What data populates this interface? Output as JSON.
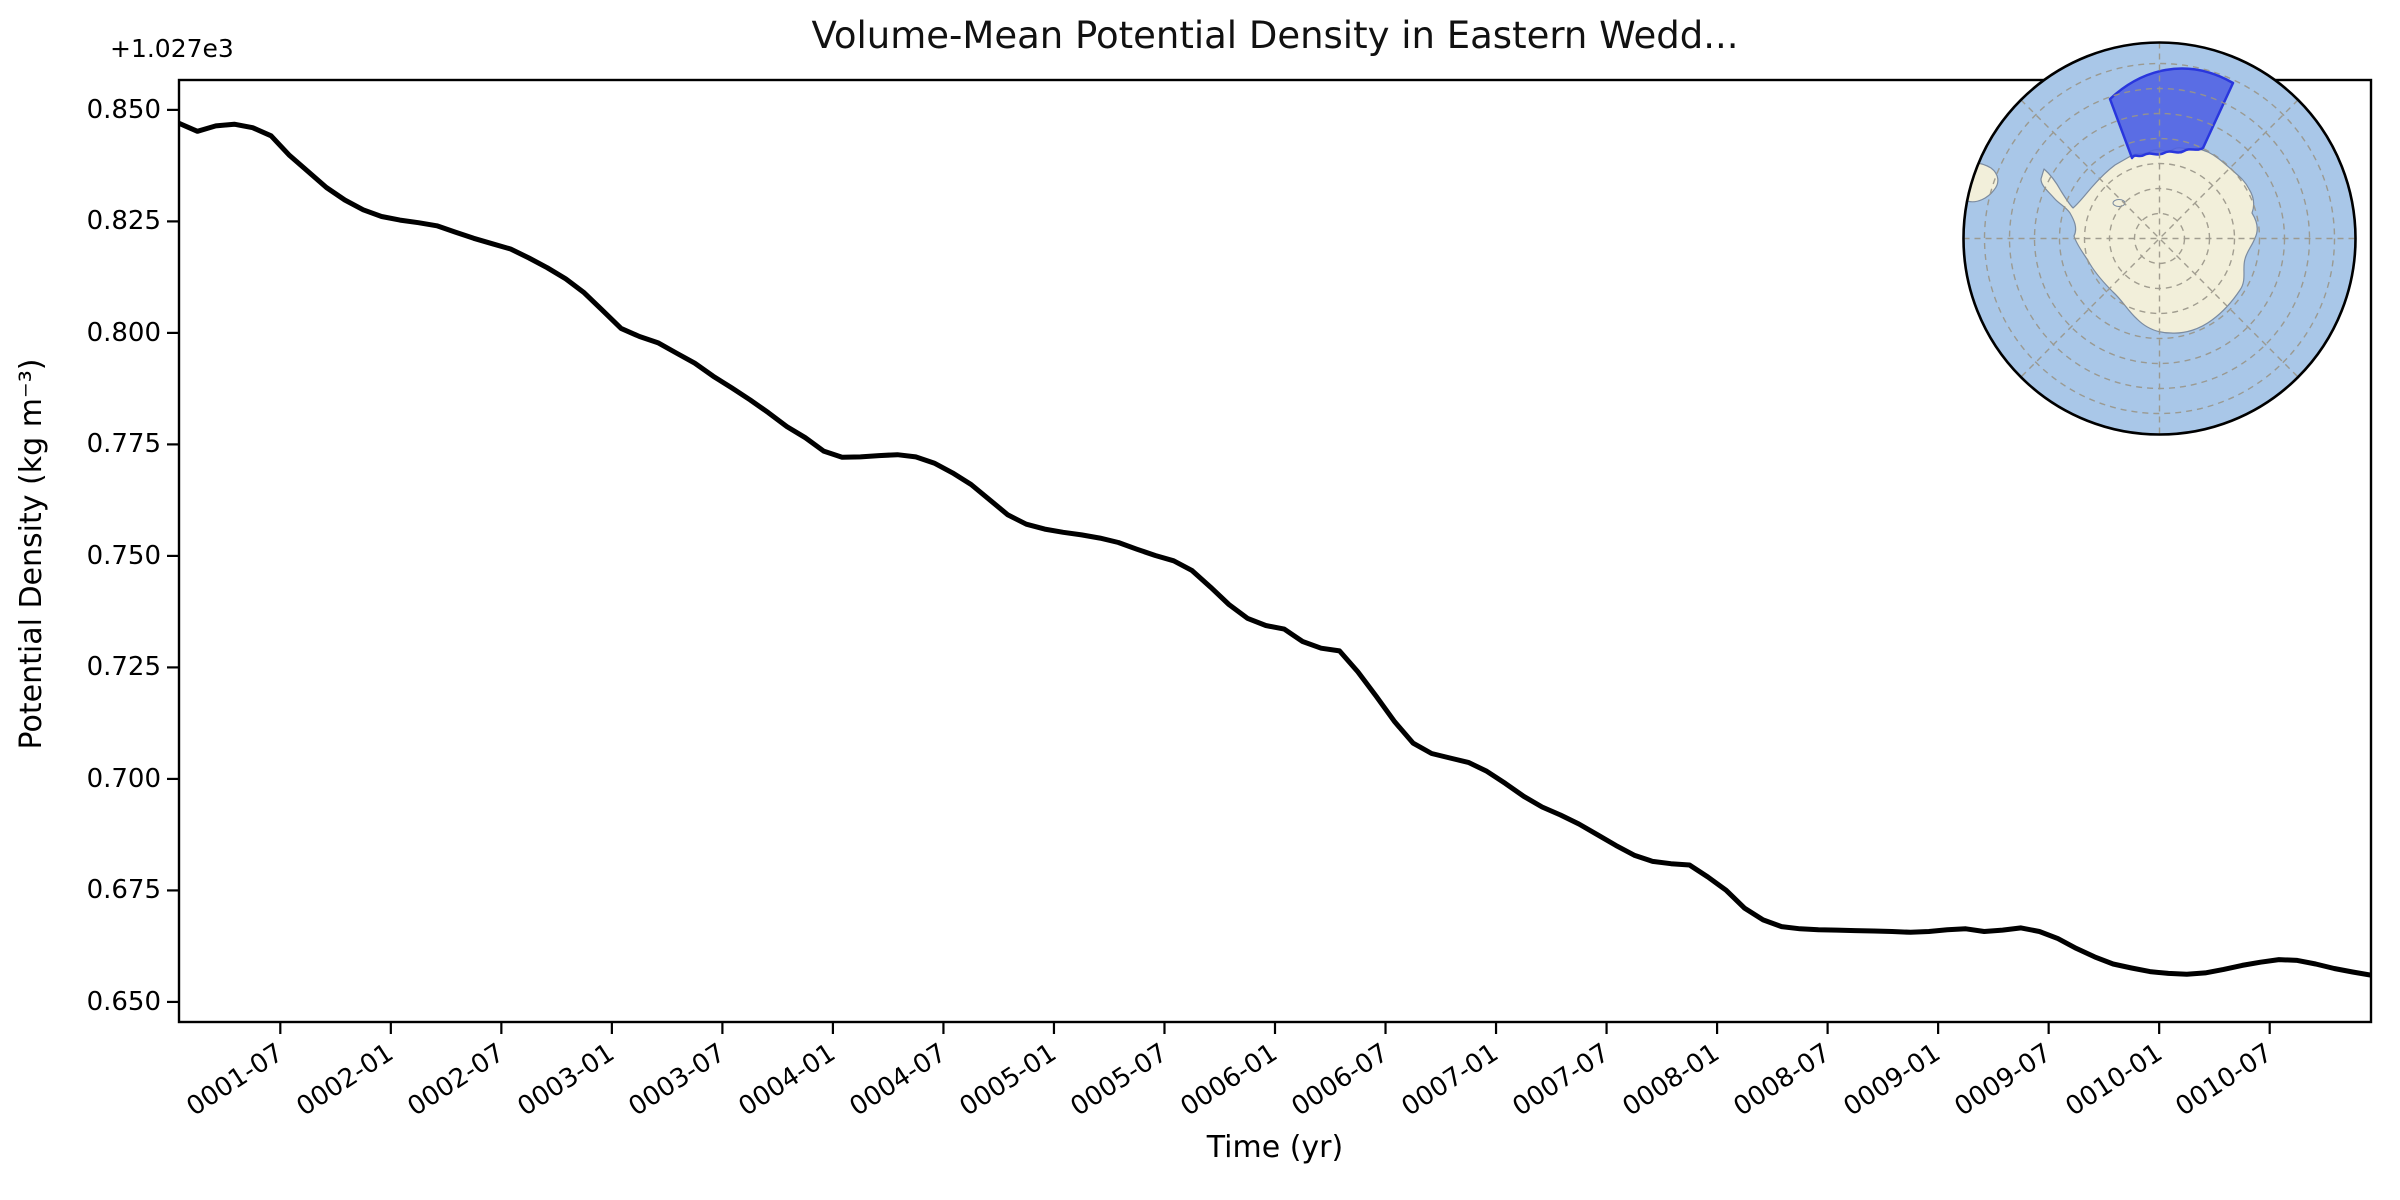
{
  "figure": {
    "title": "Volume-Mean Potential Density in Eastern Wedd...",
    "y_axis_offset_label": "+1.027e3"
  },
  "chart_data": {
    "type": "line",
    "title": "Volume-Mean Potential Density in Eastern Wedd...",
    "xlabel": "Time (yr)",
    "ylabel": "Potential Density (kg m⁻³)",
    "units": "kg m⁻³",
    "grid": false,
    "legend": false,
    "y_offset": 1027,
    "y_offset_label": "+1.027e3",
    "ylim": [
      0.6455,
      0.8567
    ],
    "xlim_months": [
      0.5,
      119.5
    ],
    "y_ticks": [
      "0.650",
      "0.675",
      "0.700",
      "0.725",
      "0.750",
      "0.775",
      "0.800",
      "0.825",
      "0.850"
    ],
    "x_tick_months": [
      6,
      12,
      18,
      24,
      30,
      36,
      42,
      48,
      54,
      60,
      66,
      72,
      78,
      84,
      90,
      96,
      102,
      108,
      114
    ],
    "x_tick_labels": [
      "0001-07",
      "0002-01",
      "0002-07",
      "0003-01",
      "0003-07",
      "0004-01",
      "0004-07",
      "0005-01",
      "0005-07",
      "0006-01",
      "0006-07",
      "0007-01",
      "0007-07",
      "0008-01",
      "0008-07",
      "0009-01",
      "0009-07",
      "0010-01",
      "0010-07"
    ],
    "series": [
      {
        "name": "volume-mean potential density",
        "color": "#000000",
        "line_width": 5,
        "x_start_label": "0001-01",
        "x_end_label": "0010-12",
        "x_months_start": 0.5,
        "x_months_step": 1,
        "values": [
          0.847,
          0.8452,
          0.8464,
          0.8468,
          0.846,
          0.8442,
          0.8398,
          0.8362,
          0.8326,
          0.8298,
          0.8276,
          0.8261,
          0.8253,
          0.8247,
          0.824,
          0.8226,
          0.8212,
          0.82,
          0.8188,
          0.8168,
          0.8146,
          0.8121,
          0.809,
          0.805,
          0.801,
          0.7992,
          0.7978,
          0.7955,
          0.7932,
          0.7903,
          0.7877,
          0.785,
          0.7821,
          0.779,
          0.7765,
          0.7735,
          0.7721,
          0.7722,
          0.7725,
          0.7727,
          0.7722,
          0.7708,
          0.7686,
          0.766,
          0.7626,
          0.7592,
          0.7571,
          0.756,
          0.7553,
          0.7547,
          0.754,
          0.753,
          0.7515,
          0.7501,
          0.7489,
          0.7467,
          0.743,
          0.7391,
          0.736,
          0.7344,
          0.7336,
          0.7308,
          0.7293,
          0.7287,
          0.724,
          0.7185,
          0.7128,
          0.708,
          0.7057,
          0.7047,
          0.7037,
          0.7017,
          0.699,
          0.6961,
          0.6937,
          0.6919,
          0.6899,
          0.6875,
          0.6851,
          0.6829,
          0.6815,
          0.681,
          0.6807,
          0.678,
          0.675,
          0.671,
          0.6684,
          0.6669,
          0.6664,
          0.6662,
          0.6661,
          0.666,
          0.6659,
          0.6658,
          0.6656,
          0.6658,
          0.6662,
          0.6664,
          0.6658,
          0.6661,
          0.6666,
          0.6658,
          0.6642,
          0.662,
          0.6601,
          0.6585,
          0.6576,
          0.6568,
          0.6564,
          0.6562,
          0.6565,
          0.6573,
          0.6582,
          0.6589,
          0.6595,
          0.6593,
          0.6585,
          0.6575,
          0.6567,
          0.656
        ]
      }
    ]
  },
  "inset_map": {
    "ocean_color": "#a9c7e8",
    "land_color": "#f2efda",
    "coast_color": "#7b8ba0",
    "graticule_color": "#999588",
    "region_fill": "#4f61e3",
    "region_edge": "#2936dd",
    "outline_color": "#000000"
  }
}
